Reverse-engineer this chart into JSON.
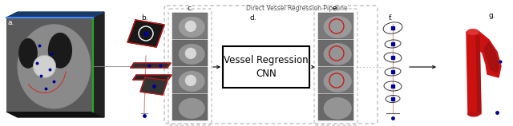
{
  "title": "Direct Vessel Regression Pipeline",
  "title_fontsize": 5.5,
  "fig_width": 6.4,
  "fig_height": 1.58,
  "bg_color": "#ffffff",
  "labels": [
    "a.",
    "b.",
    "c.",
    "d.",
    "e.",
    "f.",
    "g."
  ],
  "label_fontsize": 6.5,
  "cnn_text": "Vessel Regression\nCNN",
  "cnn_fontsize": 8.5,
  "red_color": "#cc1111",
  "blue_dot_color": "#000099",
  "dark_red": "#aa0000",
  "gray_scan": "#888888"
}
